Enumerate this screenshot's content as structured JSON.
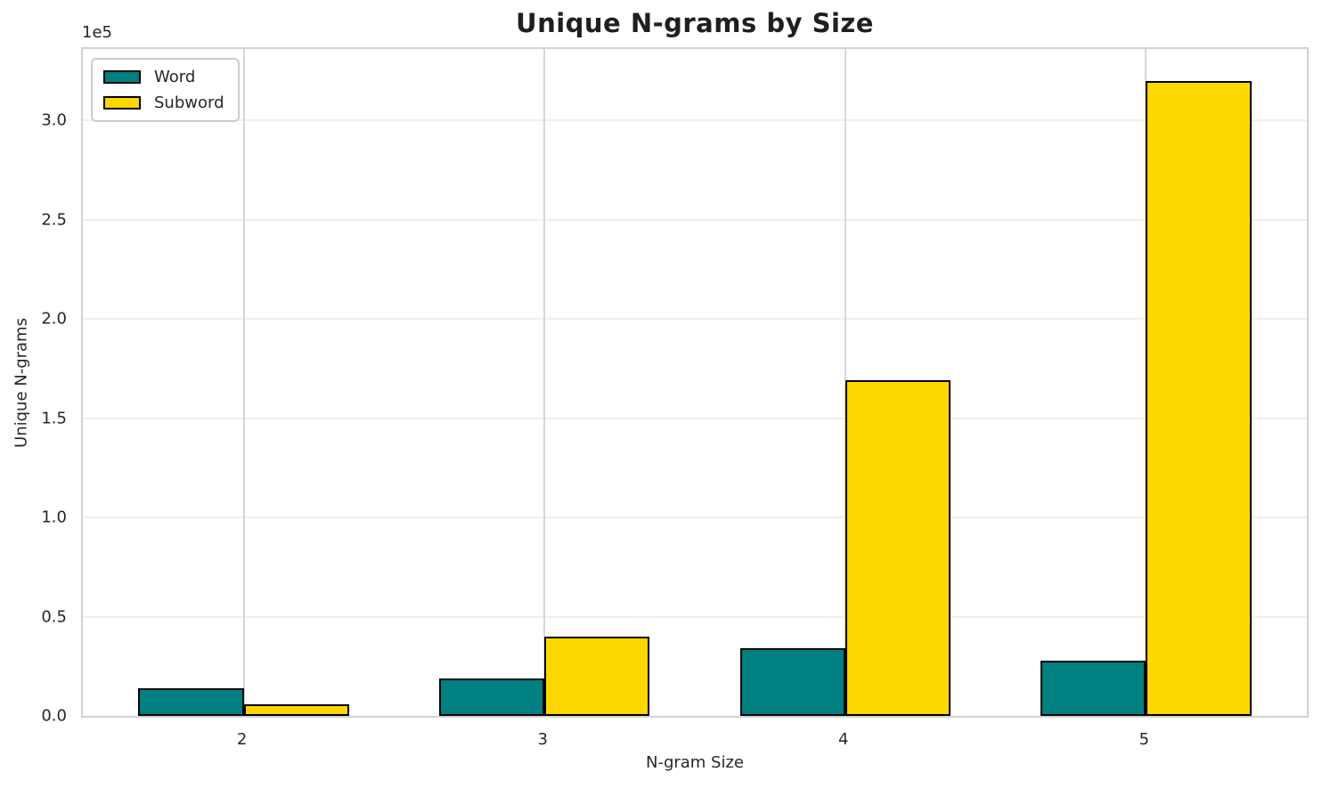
{
  "chart_data": {
    "type": "bar",
    "title": "Unique N-grams by Size",
    "xlabel": "N-gram Size",
    "ylabel": "Unique N-grams",
    "y_offset_text": "1e5",
    "categories": [
      "2",
      "3",
      "4",
      "5"
    ],
    "series": [
      {
        "name": "Word",
        "color": "#008080",
        "values": [
          14000,
          19000,
          34000,
          28000
        ]
      },
      {
        "name": "Subword",
        "color": "#FFD700",
        "values": [
          6000,
          40000,
          169000,
          320000
        ]
      }
    ],
    "bar_edge_color": "#000000",
    "bar_width_units": 0.35,
    "ylim": [
      0,
      336000
    ],
    "yticks": [
      {
        "label": "0.0",
        "value": 0
      },
      {
        "label": "0.5",
        "value": 50000
      },
      {
        "label": "1.0",
        "value": 100000
      },
      {
        "label": "1.5",
        "value": 150000
      },
      {
        "label": "2.0",
        "value": 200000
      },
      {
        "label": "2.5",
        "value": 250000
      },
      {
        "label": "3.0",
        "value": 300000
      }
    ],
    "grid": true,
    "legend_position": "upper left"
  }
}
